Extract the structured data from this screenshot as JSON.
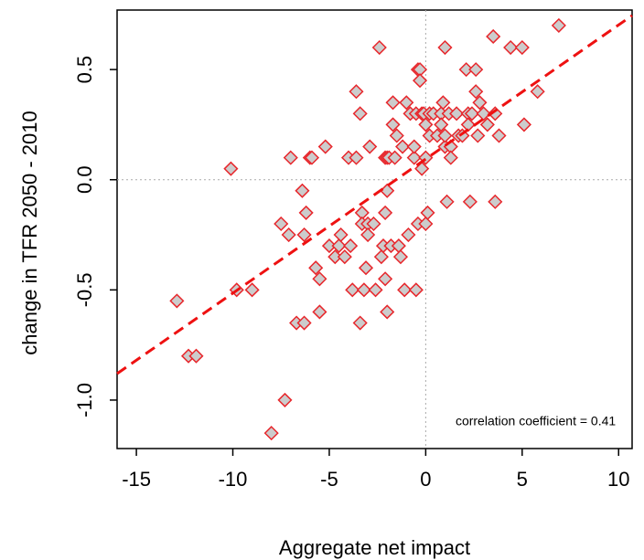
{
  "chart_data": {
    "type": "scatter",
    "title": "",
    "xlabel": "Aggregate net impact",
    "ylabel": "change in TFR 2050 - 2010",
    "xlim": [
      -16,
      10.7
    ],
    "ylim": [
      -1.22,
      0.77
    ],
    "x_ticks": [
      -15,
      -10,
      -5,
      0,
      5,
      10
    ],
    "x_tick_labels": [
      "-15",
      "-10",
      "-5",
      "0",
      "5",
      "10"
    ],
    "y_ticks": [
      -1.0,
      -0.5,
      0.0,
      0.5
    ],
    "y_tick_labels": [
      "-1.0",
      "-0.5",
      "0.0",
      "0.5"
    ],
    "grid": false,
    "reference_lines": {
      "x": 0,
      "y": 0,
      "style": "dotted",
      "color": "#aaaaaa"
    },
    "marker": {
      "shape": "diamond",
      "fill": "#cccccc",
      "stroke": "#e8262b"
    },
    "trend_line": {
      "style": "dashed",
      "color": "#ee1111",
      "points": [
        [
          -16,
          -0.88
        ],
        [
          10.7,
          0.745
        ]
      ]
    },
    "annotation": "correlation coefficient = 0.41",
    "points": [
      [
        -12.9,
        -0.55
      ],
      [
        -12.3,
        -0.8
      ],
      [
        -11.9,
        -0.8
      ],
      [
        -10.1,
        0.05
      ],
      [
        -9.8,
        -0.5
      ],
      [
        -9.0,
        -0.5
      ],
      [
        -8.0,
        -1.15
      ],
      [
        -7.3,
        -1.0
      ],
      [
        -7.5,
        -0.2
      ],
      [
        -7.1,
        -0.25
      ],
      [
        -7.0,
        0.1
      ],
      [
        -6.7,
        -0.65
      ],
      [
        -6.3,
        -0.65
      ],
      [
        -6.4,
        -0.05
      ],
      [
        -6.2,
        -0.15
      ],
      [
        -6.3,
        -0.25
      ],
      [
        -6.0,
        0.1
      ],
      [
        -5.9,
        0.1
      ],
      [
        -5.7,
        -0.4
      ],
      [
        -5.5,
        -0.45
      ],
      [
        -5.5,
        -0.6
      ],
      [
        -5.2,
        0.15
      ],
      [
        -5.0,
        -0.3
      ],
      [
        -4.7,
        -0.35
      ],
      [
        -4.5,
        -0.3
      ],
      [
        -4.4,
        -0.25
      ],
      [
        -4.2,
        -0.35
      ],
      [
        -4.0,
        0.1
      ],
      [
        -3.9,
        -0.3
      ],
      [
        -3.8,
        -0.5
      ],
      [
        -3.6,
        0.1
      ],
      [
        -3.6,
        0.4
      ],
      [
        -3.4,
        0.3
      ],
      [
        -3.4,
        -0.65
      ],
      [
        -3.3,
        -0.15
      ],
      [
        -3.3,
        -0.2
      ],
      [
        -3.2,
        -0.5
      ],
      [
        -3.1,
        -0.4
      ],
      [
        -3.0,
        -0.2
      ],
      [
        -3.0,
        -0.25
      ],
      [
        -2.9,
        0.15
      ],
      [
        -2.7,
        -0.2
      ],
      [
        -2.6,
        -0.5
      ],
      [
        -2.4,
        0.6
      ],
      [
        -2.3,
        -0.35
      ],
      [
        -2.2,
        -0.3
      ],
      [
        -2.1,
        0.1
      ],
      [
        -2.1,
        -0.45
      ],
      [
        -2.0,
        -0.6
      ],
      [
        -2.1,
        -0.15
      ],
      [
        -2.0,
        0.1
      ],
      [
        -2.0,
        -0.05
      ],
      [
        -1.9,
        0.1
      ],
      [
        -1.8,
        -0.3
      ],
      [
        -1.7,
        0.35
      ],
      [
        -1.7,
        0.25
      ],
      [
        -1.6,
        0.1
      ],
      [
        -1.5,
        0.2
      ],
      [
        -1.4,
        -0.3
      ],
      [
        -1.3,
        -0.35
      ],
      [
        -1.2,
        0.15
      ],
      [
        -1.1,
        -0.5
      ],
      [
        -1.0,
        0.35
      ],
      [
        -0.9,
        -0.25
      ],
      [
        -0.8,
        0.3
      ],
      [
        -0.6,
        0.1
      ],
      [
        -0.6,
        0.15
      ],
      [
        -0.5,
        0.3
      ],
      [
        -0.5,
        -0.5
      ],
      [
        -0.4,
        0.5
      ],
      [
        -0.3,
        0.5
      ],
      [
        -0.3,
        0.45
      ],
      [
        -0.2,
        0.3
      ],
      [
        -0.4,
        -0.2
      ],
      [
        -0.2,
        0.05
      ],
      [
        -0.1,
        0.3
      ],
      [
        0.0,
        0.25
      ],
      [
        0.0,
        0.1
      ],
      [
        0.0,
        -0.2
      ],
      [
        0.1,
        -0.15
      ],
      [
        0.2,
        0.3
      ],
      [
        0.2,
        0.2
      ],
      [
        0.4,
        0.3
      ],
      [
        0.6,
        0.2
      ],
      [
        0.8,
        0.3
      ],
      [
        0.8,
        0.25
      ],
      [
        0.9,
        0.35
      ],
      [
        1.0,
        0.15
      ],
      [
        1.0,
        0.2
      ],
      [
        1.0,
        0.6
      ],
      [
        1.2,
        0.3
      ],
      [
        1.1,
        -0.1
      ],
      [
        1.3,
        0.15
      ],
      [
        1.3,
        0.1
      ],
      [
        1.6,
        0.3
      ],
      [
        1.7,
        0.2
      ],
      [
        1.9,
        0.2
      ],
      [
        2.1,
        0.5
      ],
      [
        2.2,
        0.3
      ],
      [
        2.2,
        0.25
      ],
      [
        2.3,
        -0.1
      ],
      [
        2.4,
        0.3
      ],
      [
        2.6,
        0.5
      ],
      [
        2.6,
        0.4
      ],
      [
        2.7,
        0.2
      ],
      [
        2.8,
        0.35
      ],
      [
        3.0,
        0.3
      ],
      [
        3.2,
        0.25
      ],
      [
        3.5,
        0.65
      ],
      [
        3.6,
        -0.1
      ],
      [
        3.6,
        0.3
      ],
      [
        3.8,
        0.2
      ],
      [
        4.4,
        0.6
      ],
      [
        5.0,
        0.6
      ],
      [
        5.1,
        0.25
      ],
      [
        5.8,
        0.4
      ],
      [
        6.9,
        0.7
      ]
    ]
  }
}
